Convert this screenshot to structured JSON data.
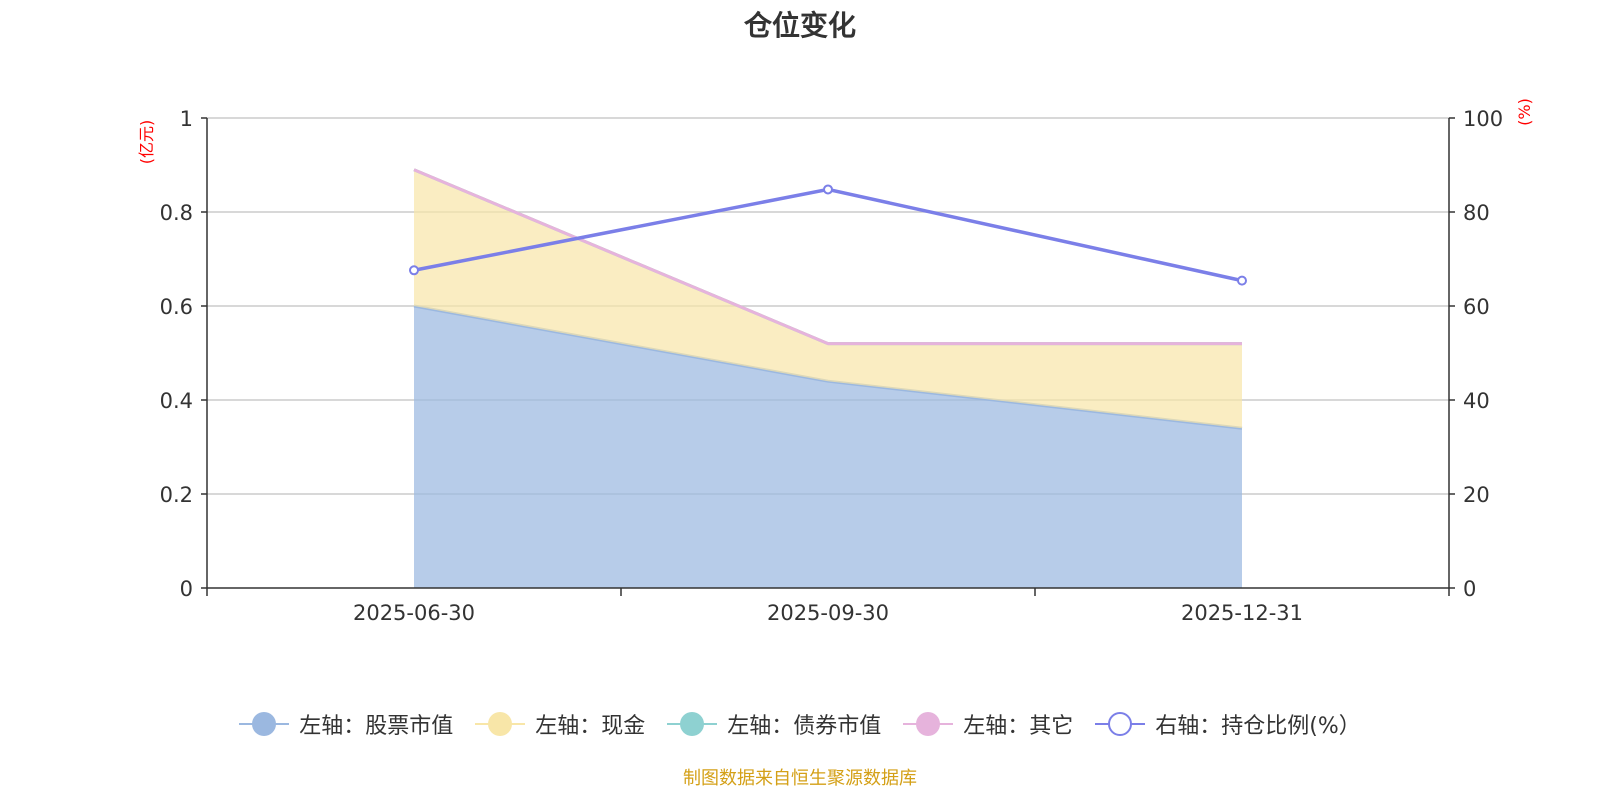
{
  "title": "仓位变化",
  "footer": "制图数据来自恒生聚源数据库",
  "legend": [
    {
      "label": "左轴：股票市值",
      "color": "#9bb8e0",
      "hollow": false
    },
    {
      "label": "左轴：现金",
      "color": "#f8e6a8",
      "hollow": false
    },
    {
      "label": "左轴：债券市值",
      "color": "#8ed1d1",
      "hollow": false
    },
    {
      "label": "左轴：其它",
      "color": "#e6b3dc",
      "hollow": false
    },
    {
      "label": "右轴：持仓比例(%）",
      "color": "#7b7fe8",
      "hollow": true
    }
  ],
  "chart_data": {
    "type": "area",
    "title": "仓位变化",
    "categories": [
      "2025-06-30",
      "2025-09-30",
      "2025-12-31"
    ],
    "left_axis": {
      "unit": "(亿元)",
      "ylim": [
        0,
        1
      ],
      "ticks": [
        "0",
        "0.2",
        "0.4",
        "0.6",
        "0.8",
        "1"
      ]
    },
    "right_axis": {
      "unit": "(%)",
      "ylim": [
        0,
        100
      ],
      "ticks": [
        "0",
        "20",
        "40",
        "60",
        "80",
        "100"
      ]
    },
    "grid": true,
    "legend_position": "bottom",
    "series": [
      {
        "name": "左轴：股票市值",
        "axis": "left",
        "kind": "area",
        "color": "#9bb8e0",
        "values": [
          0.6,
          0.44,
          0.34
        ]
      },
      {
        "name": "左轴：现金",
        "axis": "left",
        "kind": "area",
        "color": "#f8e6a8",
        "values": [
          0.29,
          0.08,
          0.18
        ]
      },
      {
        "name": "左轴：债券市值",
        "axis": "left",
        "kind": "area",
        "color": "#8ed1d1",
        "values": [
          0,
          0,
          0
        ]
      },
      {
        "name": "左轴：其它",
        "axis": "left",
        "kind": "area",
        "color": "#e6b3dc",
        "values": [
          0.0,
          0.0,
          0.0
        ]
      },
      {
        "name": "右轴：持仓比例(%）",
        "axis": "right",
        "kind": "line",
        "color": "#7b7fe8",
        "values": [
          67.6,
          84.8,
          65.4
        ]
      }
    ]
  }
}
